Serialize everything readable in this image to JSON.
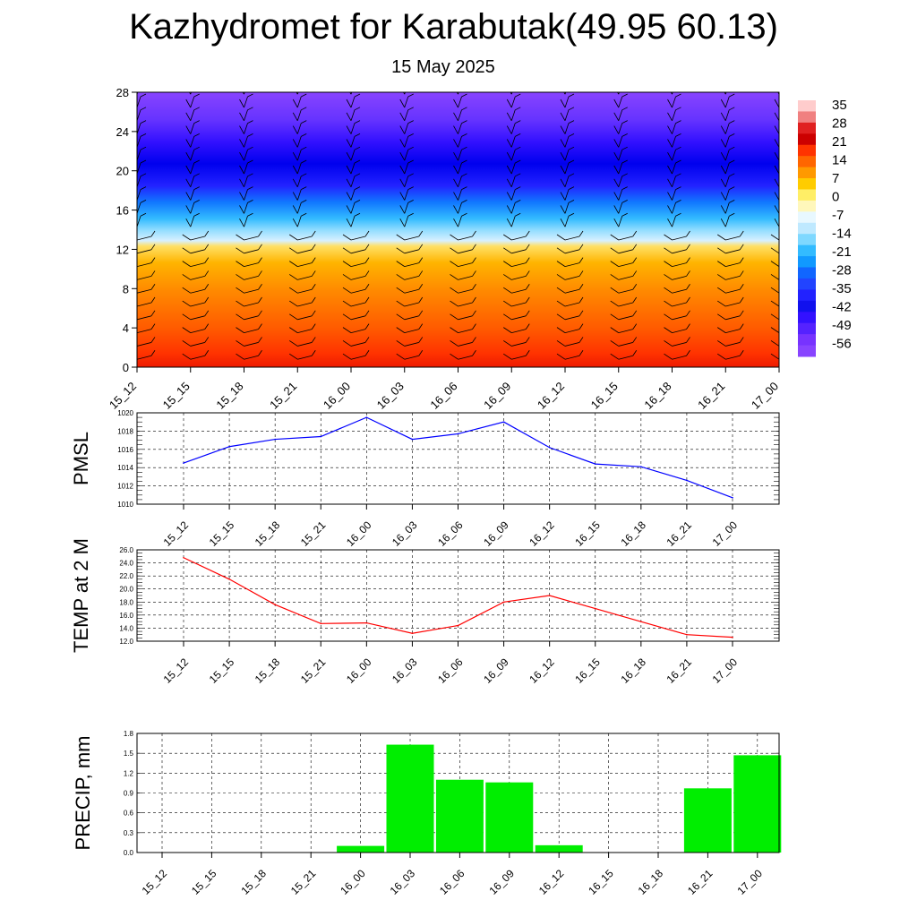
{
  "title": "Kazhydromet for Karabutak(49.95 60.13)",
  "subtitle": "15 May 2025",
  "colors": {
    "pmsl_line": "#0000ff",
    "temp_line": "#ff0000",
    "precip_bar": "#00ee00",
    "grid": "#000000"
  },
  "chart_data": [
    {
      "type": "heatmap",
      "name": "cross-section",
      "x_ticks": [
        "15_12",
        "15_15",
        "15_18",
        "15_21",
        "16_00",
        "16_03",
        "16_06",
        "16_09",
        "16_12",
        "16_15",
        "16_18",
        "16_21",
        "17_00"
      ],
      "y_ticks": [
        0,
        4,
        8,
        12,
        16,
        20,
        24,
        28
      ],
      "ylim": [
        0,
        28
      ],
      "colorbar_labels": [
        35,
        28,
        21,
        14,
        7,
        0,
        -7,
        -14,
        -21,
        -28,
        -35,
        -42,
        -49,
        -56
      ],
      "wind_barbs": true
    },
    {
      "type": "line",
      "ylabel": "PMSL",
      "categories": [
        "15_12",
        "15_15",
        "15_18",
        "15_21",
        "16_00",
        "16_03",
        "16_06",
        "16_09",
        "16_12",
        "16_15",
        "16_18",
        "16_21",
        "17_00"
      ],
      "values": [
        1014.5,
        1016.3,
        1017.1,
        1017.4,
        1019.5,
        1017.1,
        1017.7,
        1019.0,
        1016.2,
        1014.4,
        1014.1,
        1012.6,
        1010.7
      ],
      "ylim": [
        1010,
        1020
      ],
      "y_ticks": [
        "1010",
        "1012",
        "1014",
        "1016",
        "1018",
        "1020"
      ],
      "grid": true
    },
    {
      "type": "line",
      "ylabel": "TEMP at 2 M",
      "categories": [
        "15_12",
        "15_15",
        "15_18",
        "15_21",
        "16_00",
        "16_03",
        "16_06",
        "16_09",
        "16_12",
        "16_15",
        "16_18",
        "16_21",
        "17_00"
      ],
      "values": [
        24.8,
        21.5,
        17.6,
        14.7,
        14.8,
        13.2,
        14.4,
        18.0,
        19.0,
        17.0,
        15.0,
        13.0,
        12.6
      ],
      "ylim": [
        12,
        26
      ],
      "y_ticks": [
        "12.0",
        "14.0",
        "16.0",
        "18.0",
        "20.0",
        "22.0",
        "24.0",
        "26.0"
      ],
      "grid": true
    },
    {
      "type": "bar",
      "ylabel": "PRECIP, mm",
      "categories": [
        "15_12",
        "15_15",
        "15_18",
        "15_21",
        "16_00",
        "16_03",
        "16_06",
        "16_09",
        "16_12",
        "16_15",
        "16_18",
        "16_21",
        "17_00"
      ],
      "values": [
        0,
        0,
        0,
        0,
        0.1,
        1.63,
        1.1,
        1.06,
        0.11,
        0,
        0,
        0.97,
        1.47
      ],
      "ylim": [
        0,
        1.8
      ],
      "y_ticks": [
        "0.0",
        "0.3",
        "0.6",
        "0.9",
        "1.2",
        "1.5",
        "1.8"
      ],
      "grid": true
    }
  ]
}
